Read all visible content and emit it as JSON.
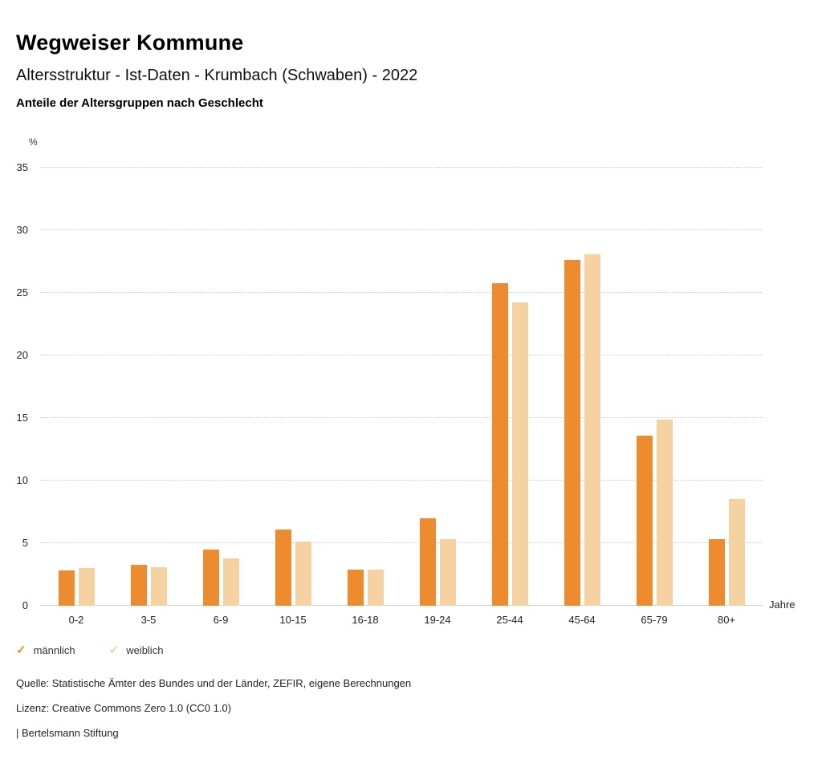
{
  "header": {
    "title": "Wegweiser Kommune",
    "subtitle": "Altersstruktur - Ist-Daten - Krumbach (Schwaben) - 2022",
    "chart_heading": "Anteile der Altersgruppen nach Geschlecht"
  },
  "chart_data": {
    "type": "bar",
    "categories": [
      "0-2",
      "3-5",
      "6-9",
      "10-15",
      "16-18",
      "19-24",
      "25-44",
      "45-64",
      "65-79",
      "80+"
    ],
    "series": [
      {
        "name": "männlich",
        "color": "#ED8B2E",
        "values": [
          2.8,
          3.3,
          4.5,
          6.1,
          2.9,
          7.0,
          25.8,
          27.6,
          13.6,
          5.3
        ]
      },
      {
        "name": "weiblich",
        "color": "#F6D1A1",
        "values": [
          3.0,
          3.1,
          3.8,
          5.1,
          2.9,
          5.3,
          24.2,
          28.1,
          14.9,
          8.5
        ]
      }
    ],
    "title": "Anteile der Altersgruppen nach Geschlecht",
    "ylabel": "%",
    "xlabel": "Jahre",
    "ylim": [
      0,
      35
    ],
    "ytick_step": 5,
    "grid": true,
    "grid_style": "dotted",
    "legend_position": "bottom-left"
  },
  "footer": {
    "source": "Quelle: Statistische Ämter des Bundes und der Länder, ZEFIR, eigene Berechnungen",
    "license": "Lizenz: Creative Commons Zero 1.0 (CC0 1.0)",
    "attribution": "| Bertelsmann Stiftung"
  }
}
